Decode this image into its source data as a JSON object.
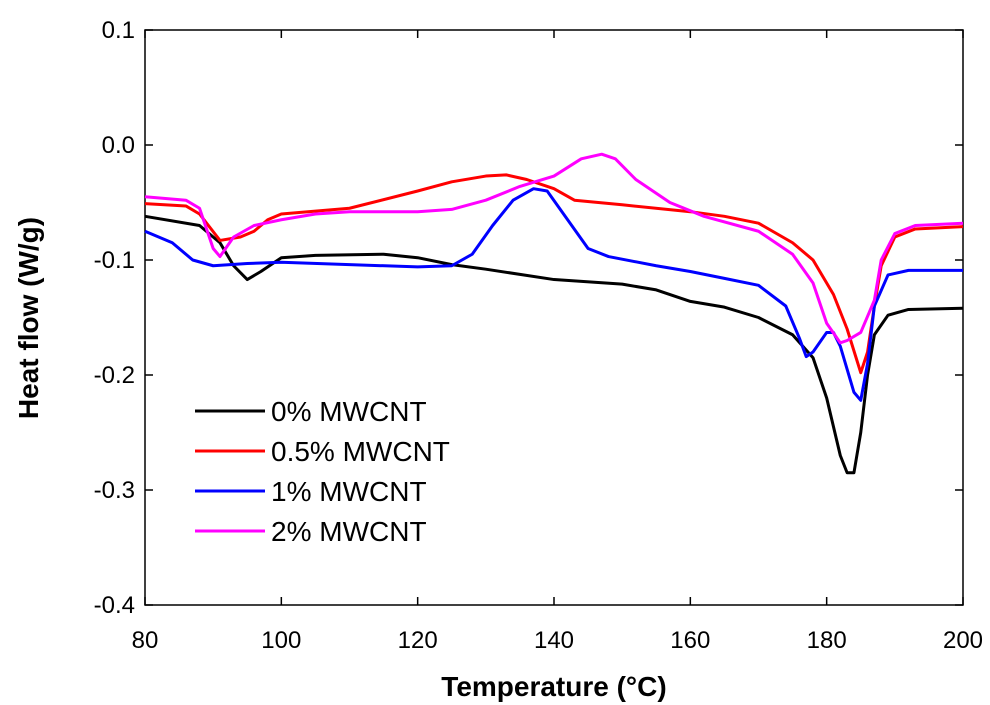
{
  "chart_data": {
    "type": "line",
    "xlabel": "Temperature (°C)",
    "ylabel": "Heat flow (W/g)",
    "xlim": [
      80,
      200
    ],
    "ylim": [
      -0.4,
      0.1
    ],
    "xticks": [
      80,
      100,
      120,
      140,
      160,
      180,
      200
    ],
    "yticks": [
      -0.4,
      -0.3,
      -0.2,
      -0.1,
      {
        "value": 0,
        "label": "0.0"
      },
      0.1
    ],
    "legend": "lower left",
    "series": [
      {
        "name": "0% MWCNT",
        "color": "#000000",
        "x": [
          80,
          88,
          91,
          93,
          95,
          97,
          100,
          105,
          115,
          120,
          125,
          130,
          140,
          150,
          155,
          160,
          165,
          170,
          175,
          178,
          180,
          182,
          183,
          184,
          185,
          186,
          187,
          189,
          192,
          200
        ],
        "values": [
          -0.062,
          -0.07,
          -0.085,
          -0.105,
          -0.117,
          -0.11,
          -0.098,
          -0.096,
          -0.095,
          -0.098,
          -0.104,
          -0.108,
          -0.117,
          -0.121,
          -0.126,
          -0.136,
          -0.141,
          -0.15,
          -0.165,
          -0.185,
          -0.22,
          -0.27,
          -0.285,
          -0.285,
          -0.25,
          -0.2,
          -0.165,
          -0.148,
          -0.143,
          -0.142
        ]
      },
      {
        "name": "0.5% MWCNT",
        "color": "#ff0000",
        "x": [
          80,
          86,
          88,
          91,
          94,
          96,
          98,
          100,
          110,
          120,
          125,
          130,
          133,
          136,
          140,
          143,
          150,
          160,
          165,
          170,
          175,
          178,
          181,
          183,
          185,
          186,
          187,
          188,
          190,
          193,
          200
        ],
        "values": [
          -0.051,
          -0.053,
          -0.06,
          -0.083,
          -0.08,
          -0.075,
          -0.065,
          -0.06,
          -0.055,
          -0.04,
          -0.032,
          -0.027,
          -0.026,
          -0.03,
          -0.038,
          -0.048,
          -0.052,
          -0.058,
          -0.062,
          -0.068,
          -0.085,
          -0.1,
          -0.13,
          -0.16,
          -0.198,
          -0.18,
          -0.14,
          -0.105,
          -0.08,
          -0.073,
          -0.071
        ]
      },
      {
        "name": "1% MWCNT",
        "color": "#0000ff",
        "x": [
          80,
          84,
          87,
          90,
          95,
          100,
          110,
          120,
          125,
          128,
          131,
          134,
          137,
          139,
          142,
          145,
          148,
          155,
          160,
          165,
          170,
          174,
          176,
          177,
          178,
          180,
          181,
          182,
          184,
          185,
          186,
          187,
          189,
          192,
          200
        ],
        "values": [
          -0.075,
          -0.085,
          -0.1,
          -0.105,
          -0.103,
          -0.102,
          -0.104,
          -0.106,
          -0.105,
          -0.095,
          -0.07,
          -0.048,
          -0.038,
          -0.04,
          -0.065,
          -0.09,
          -0.097,
          -0.105,
          -0.11,
          -0.116,
          -0.122,
          -0.14,
          -0.168,
          -0.184,
          -0.18,
          -0.163,
          -0.163,
          -0.175,
          -0.215,
          -0.222,
          -0.19,
          -0.14,
          -0.113,
          -0.109,
          -0.109
        ]
      },
      {
        "name": "2% MWCNT",
        "color": "#ff00ff",
        "x": [
          80,
          86,
          88,
          90,
          91,
          93,
          96,
          100,
          105,
          110,
          120,
          125,
          130,
          135,
          140,
          144,
          147,
          149,
          152,
          157,
          162,
          170,
          175,
          178,
          180,
          182,
          183,
          185,
          187,
          188,
          190,
          193,
          200
        ],
        "values": [
          -0.045,
          -0.048,
          -0.055,
          -0.09,
          -0.097,
          -0.08,
          -0.07,
          -0.065,
          -0.06,
          -0.058,
          -0.058,
          -0.056,
          -0.048,
          -0.036,
          -0.027,
          -0.012,
          -0.008,
          -0.012,
          -0.03,
          -0.05,
          -0.062,
          -0.075,
          -0.095,
          -0.12,
          -0.155,
          -0.172,
          -0.17,
          -0.163,
          -0.135,
          -0.1,
          -0.077,
          -0.07,
          -0.068
        ]
      }
    ]
  }
}
